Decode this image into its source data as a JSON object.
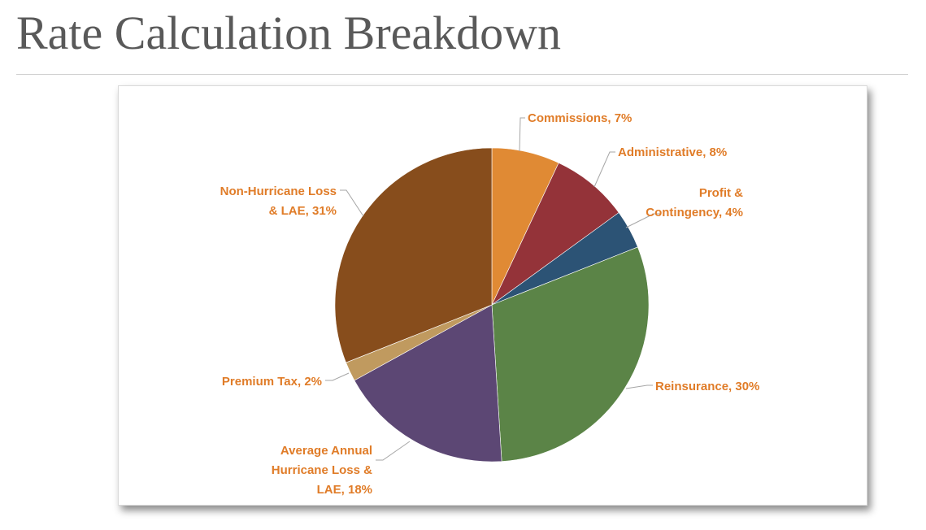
{
  "slide": {
    "title": "Rate Calculation Breakdown"
  },
  "colors": {
    "label_text": "#e07c28",
    "leader_line": "#a6a6a6",
    "title_text": "#595959"
  },
  "chart_data": {
    "type": "pie",
    "title": "",
    "start_angle_deg": 0,
    "direction": "clockwise",
    "slices": [
      {
        "name": "Commissions",
        "value": 7,
        "label": [
          "Commissions, 7%"
        ],
        "color": "#e08a34"
      },
      {
        "name": "Administrative",
        "value": 8,
        "label": [
          "Administrative, 8%"
        ],
        "color": "#943339"
      },
      {
        "name": "Profit & Contingency",
        "value": 4,
        "label": [
          "Profit &",
          "Contingency, 4%"
        ],
        "color": "#2c5375"
      },
      {
        "name": "Reinsurance",
        "value": 30,
        "label": [
          "Reinsurance, 30%"
        ],
        "color": "#5b8447"
      },
      {
        "name": "Average Annual Hurricane Loss & LAE",
        "value": 18,
        "label": [
          "Average Annual",
          "Hurricane Loss &",
          "LAE, 18%"
        ],
        "color": "#5c4774"
      },
      {
        "name": "Premium Tax",
        "value": 2,
        "label": [
          "Premium Tax, 2%"
        ],
        "color": "#c09a5f"
      },
      {
        "name": "Non-Hurricane Loss & LAE",
        "value": 31,
        "label": [
          "Non-Hurricane Loss",
          "& LAE, 31%"
        ],
        "color": "#874d1c"
      }
    ],
    "legend": "none",
    "data_labels": "outside-with-leader-lines"
  }
}
